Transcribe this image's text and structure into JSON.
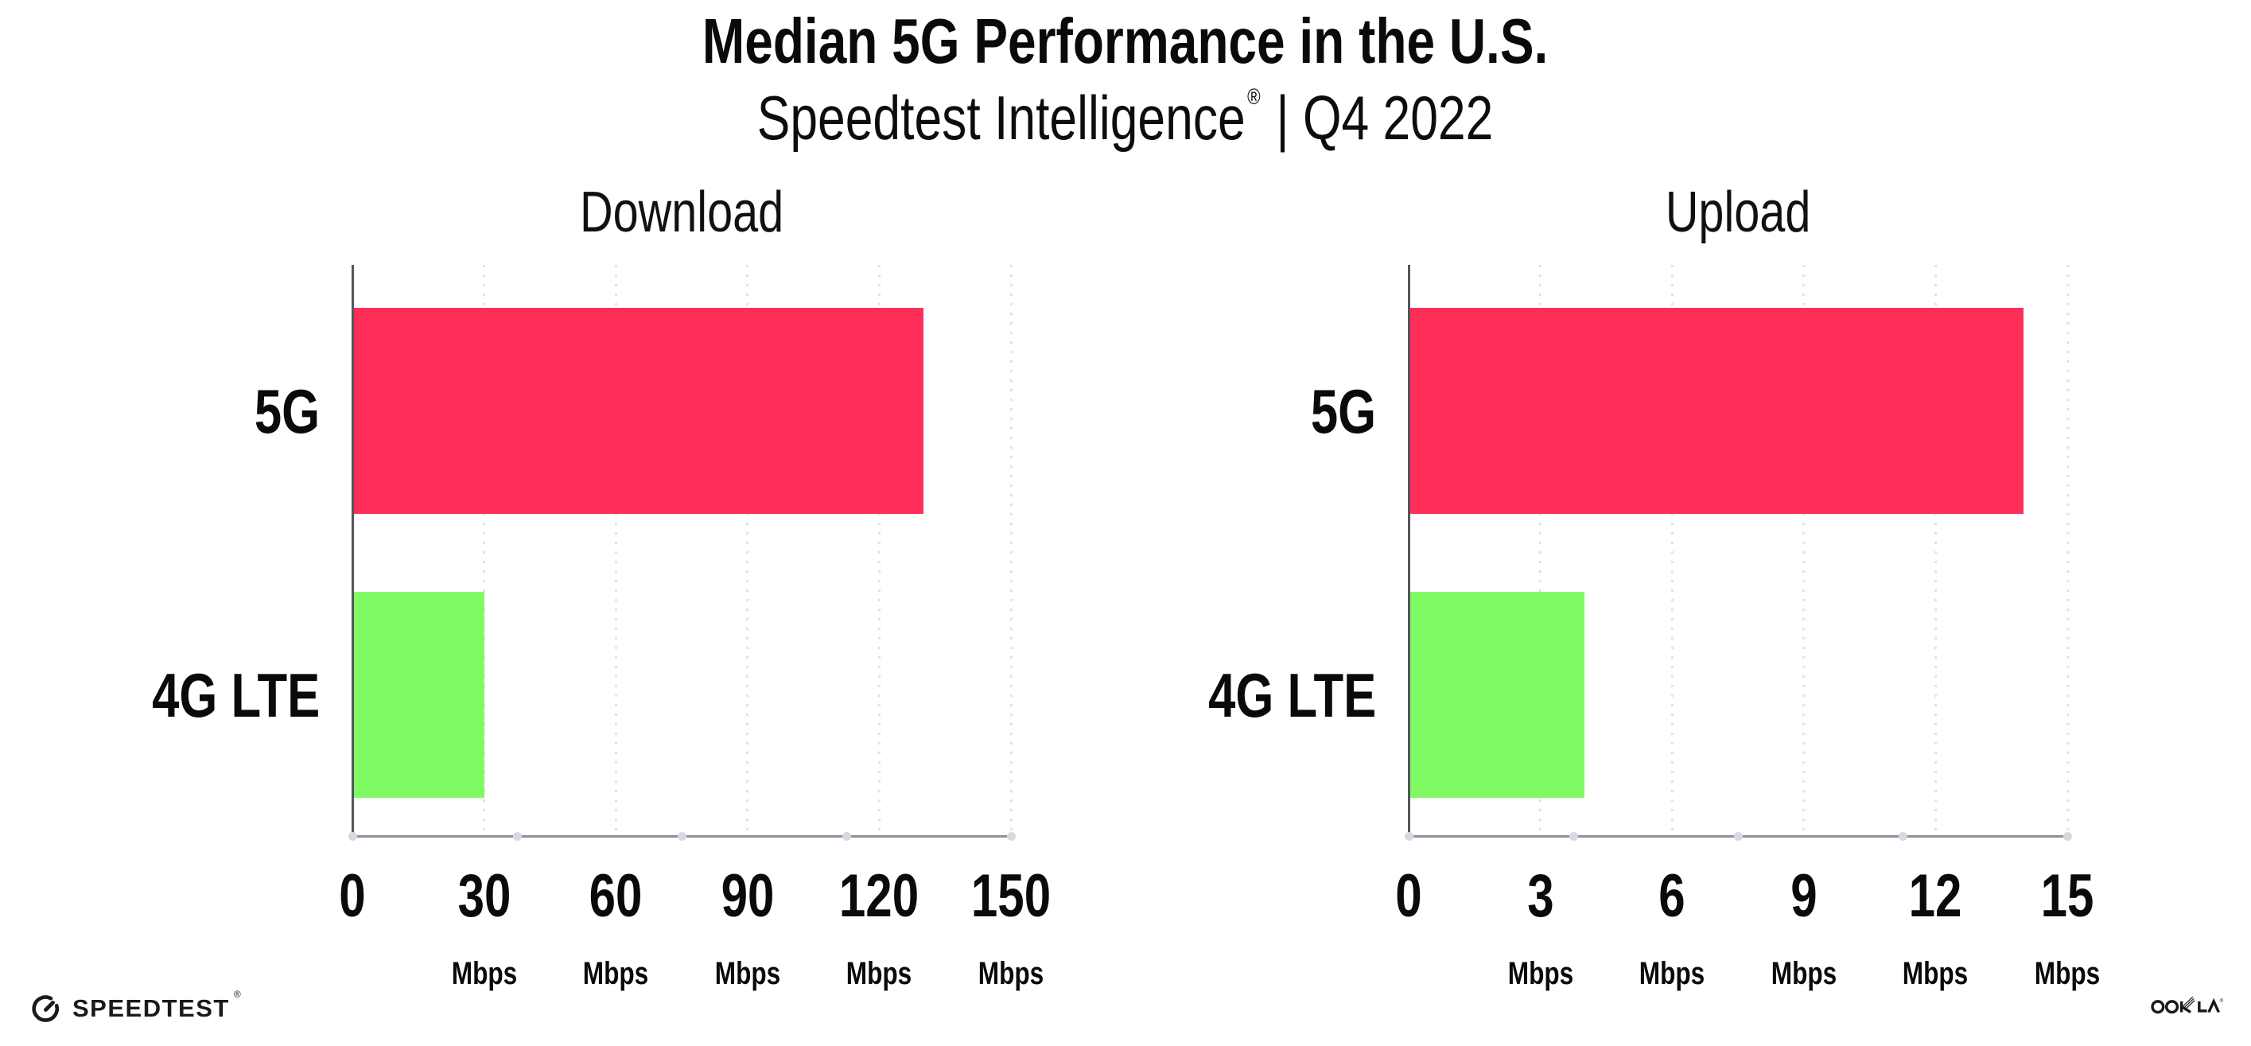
{
  "title": "Median 5G Performance in the U.S.",
  "subtitle": {
    "brand": "Speedtest Intelligence",
    "reg": "®",
    "rest": " | Q4 2022"
  },
  "footer": {
    "speedtest_label": "SPEEDTEST",
    "speedtest_mark": "®",
    "speedtest_icon": "speedtest-gauge-icon",
    "ookla_label": "OOKLA",
    "ookla_mark": "®"
  },
  "colors": {
    "bar_5g": "#FE2E59",
    "bar_4g_lte": "#80FB66",
    "y_axis": "#55555E",
    "x_axis": "#90909A",
    "gridline_dot": "#E1E1EB",
    "axis_marker_dot": "#D8D8E2",
    "text": "#0A0A0A",
    "background": "#FFFFFF"
  },
  "chart_data": [
    {
      "type": "bar",
      "orientation": "horizontal",
      "title": "Download",
      "categories": [
        "5G",
        "4G LTE"
      ],
      "values": [
        130,
        30
      ],
      "unit": "Mbps",
      "xlim": [
        0,
        150
      ],
      "xticks": [
        0,
        30,
        60,
        90,
        120,
        150
      ],
      "bar_colors": [
        "#FE2E59",
        "#80FB66"
      ],
      "grid": "vertical-dotted",
      "legend": "none"
    },
    {
      "type": "bar",
      "orientation": "horizontal",
      "title": "Upload",
      "categories": [
        "5G",
        "4G LTE"
      ],
      "values": [
        14,
        4
      ],
      "unit": "Mbps",
      "xlim": [
        0,
        15
      ],
      "xticks": [
        0,
        3,
        6,
        9,
        12,
        15
      ],
      "bar_colors": [
        "#FE2E59",
        "#80FB66"
      ],
      "grid": "vertical-dotted",
      "legend": "none"
    }
  ]
}
